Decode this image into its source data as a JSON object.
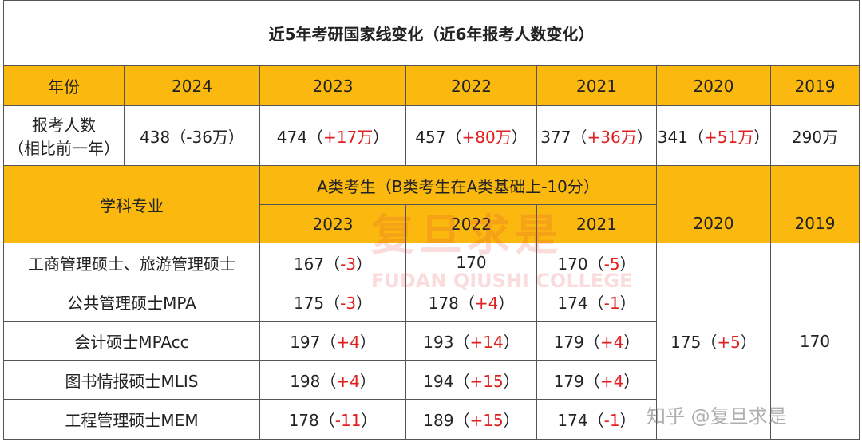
{
  "title": "近5年考研国家线变化（近6年报考人数变化）",
  "header": {
    "label": "年份",
    "years": [
      "2024",
      "2023",
      "2022",
      "2021",
      "2020",
      "2019"
    ]
  },
  "applicants": {
    "label_lines": [
      "报考人数",
      "（相比前一年）"
    ],
    "cells": [
      [
        "438（-36万）"
      ],
      [
        "474（",
        "+17万",
        "）"
      ],
      [
        "457（",
        "+80万",
        "）"
      ],
      [
        "377（",
        "+36万",
        "）"
      ],
      [
        "341（",
        "+51万",
        "）"
      ],
      [
        "290万"
      ]
    ]
  },
  "scores": {
    "label": "学科专业",
    "group": "A类考生（B类考生在A类基础上-10分）",
    "years": [
      "2023",
      "2022",
      "2021",
      "2020",
      "2019"
    ],
    "rows": [
      {
        "subject": "工商管理硕士、旅游管理硕士",
        "cells": [
          [
            "167（",
            "-3",
            "）"
          ],
          [
            "170"
          ],
          [
            "170（",
            "-5",
            "）"
          ]
        ]
      },
      {
        "subject": "公共管理硕士MPA",
        "cells": [
          [
            "175（",
            "-3",
            "）"
          ],
          [
            "178（",
            "+4",
            "）"
          ],
          [
            "174（",
            "-1",
            "）"
          ]
        ]
      },
      {
        "subject": "会计硕士MPAcc",
        "cells": [
          [
            "197（",
            "+4",
            "）"
          ],
          [
            "193（",
            "+14",
            "）"
          ],
          [
            "179（",
            "+4",
            "）"
          ]
        ]
      },
      {
        "subject": "图书情报硕士MLIS",
        "cells": [
          [
            "198（",
            "+4",
            "）"
          ],
          [
            "194（",
            "+15",
            "）"
          ],
          [
            "179（",
            "+4",
            "）"
          ]
        ]
      },
      {
        "subject": "工程管理硕士MEM",
        "cells": [
          [
            "178（",
            "-11",
            "）"
          ],
          [
            "189（",
            "+15",
            "）"
          ],
          [
            "174（",
            "-1",
            "）"
          ]
        ]
      }
    ],
    "merged": [
      [
        "175（",
        "+5",
        "）"
      ],
      [
        "170"
      ]
    ]
  },
  "watermark": {
    "center": "复旦求是",
    "center_en": "FUDAN QIUSHI COLLEGE",
    "corner": "知乎 @复旦求是"
  }
}
